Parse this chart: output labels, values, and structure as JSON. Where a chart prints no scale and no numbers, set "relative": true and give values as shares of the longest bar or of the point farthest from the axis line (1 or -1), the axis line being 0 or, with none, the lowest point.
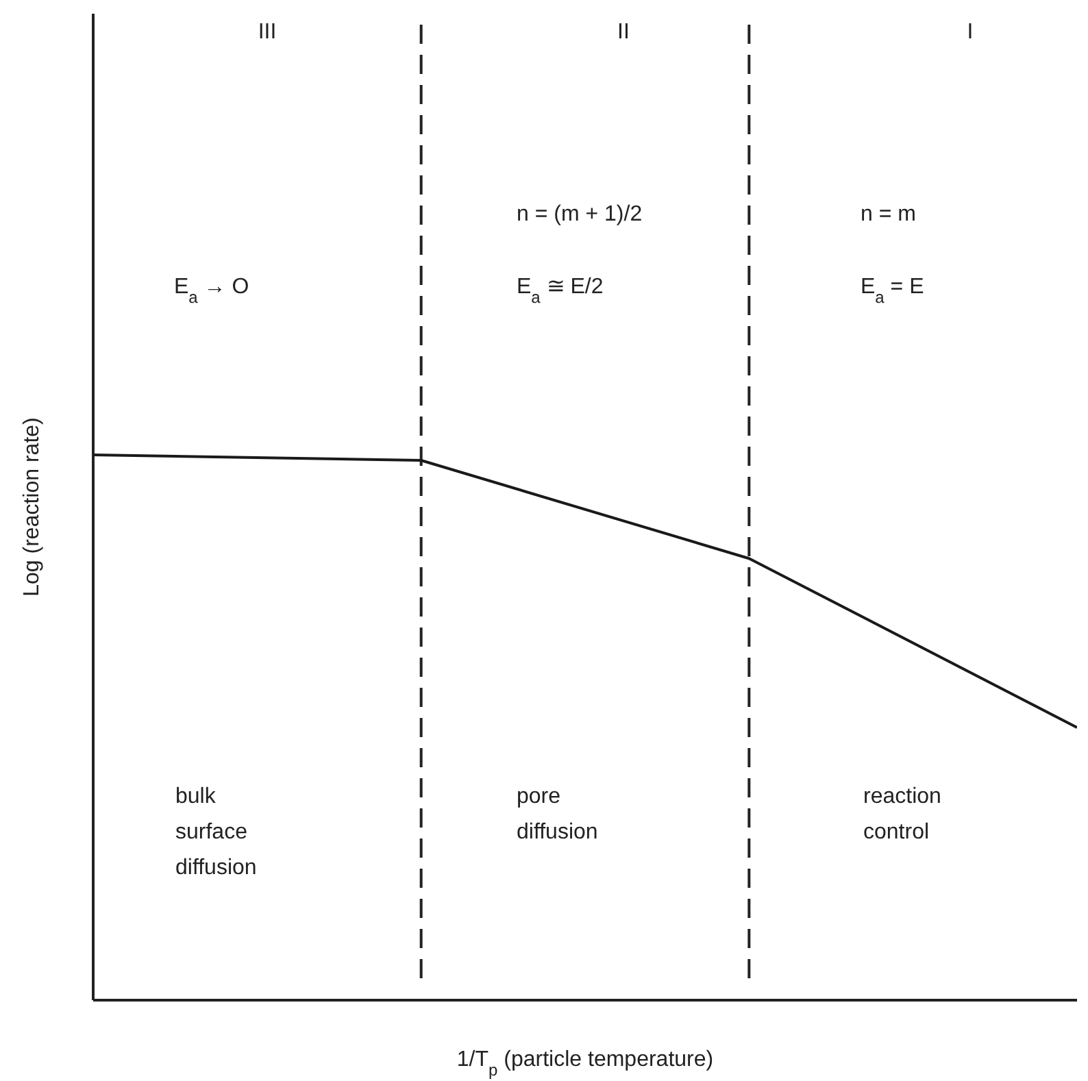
{
  "chart_data": {
    "type": "line",
    "relative": true,
    "xlabel": "1/T$_{p}$ (particle temperature)",
    "ylabel": "Log (reaction rate)",
    "categories": [
      null,
      null,
      null,
      null
    ],
    "series": [
      {
        "color": "#1a1a1a",
        "values": [
          1,
          0.99,
          0.81,
          0.5
        ]
      }
    ],
    "annotations": [
      "III",
      "II",
      "I",
      "n = (m + 1)/2",
      "n = m",
      "E$_{a}$ → O",
      "E$_{a}$ ≅ E/2",
      "E$_{a}$ = E",
      "bulk\nsurface\ndiffusion",
      "pore\ndiffusion",
      "reaction\ncontrol"
    ],
    "line_style": "solid"
  }
}
